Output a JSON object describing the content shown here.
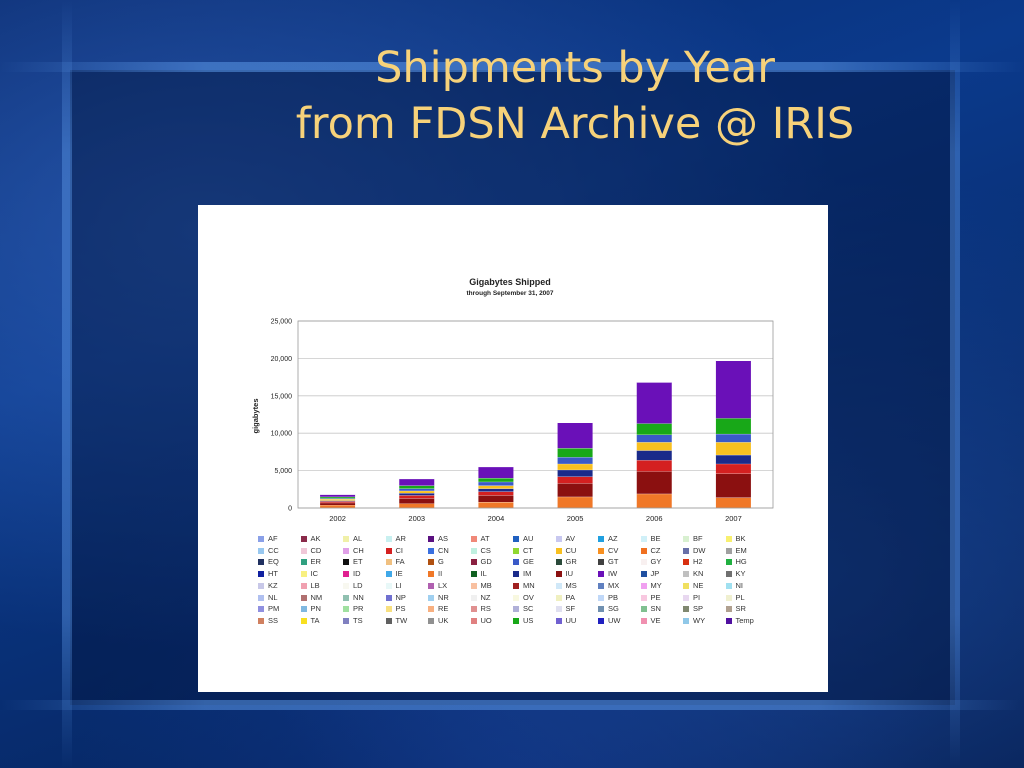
{
  "slide": {
    "title_line1": "Shipments by Year",
    "title_line2": "from FDSN Archive @ IRIS"
  },
  "chart_data": {
    "type": "bar",
    "stacked": true,
    "title": "Gigabytes Shipped",
    "subtitle": "through September 31, 2007",
    "ylabel": "gigabytes",
    "xlabel": "",
    "ylim": [
      0,
      25000
    ],
    "yticks": [
      0,
      5000,
      10000,
      15000,
      20000,
      25000
    ],
    "ytick_labels": [
      "0",
      "5,000",
      "10,000",
      "15,000",
      "20,000",
      "25,000"
    ],
    "grid": true,
    "categories": [
      "2002",
      "2003",
      "2004",
      "2005",
      "2006",
      "2007"
    ],
    "totals": [
      1800,
      3900,
      5500,
      11400,
      16800,
      19700
    ],
    "series": [
      {
        "name": "II",
        "color": "#f07828",
        "values": [
          400,
          600,
          800,
          1500,
          1900,
          1400
        ]
      },
      {
        "name": "IU",
        "color": "#8b1010",
        "values": [
          300,
          700,
          900,
          1800,
          3000,
          3200
        ]
      },
      {
        "name": "CI",
        "color": "#d42020",
        "values": [
          200,
          400,
          500,
          900,
          1500,
          1300
        ]
      },
      {
        "name": "IM",
        "color": "#1a2a8a",
        "values": [
          100,
          300,
          400,
          900,
          1300,
          1200
        ]
      },
      {
        "name": "CU",
        "color": "#f8c020",
        "values": [
          200,
          300,
          400,
          800,
          1100,
          1700
        ]
      },
      {
        "name": "GE",
        "color": "#3a5ac8",
        "values": [
          100,
          300,
          500,
          900,
          1000,
          1100
        ]
      },
      {
        "name": "US",
        "color": "#18a818",
        "values": [
          200,
          400,
          500,
          1200,
          1500,
          2100
        ]
      },
      {
        "name": "IW",
        "color": "#6a10b8",
        "values": [
          300,
          900,
          1500,
          3400,
          5500,
          7700
        ]
      }
    ],
    "legend_position": "bottom",
    "legend": [
      {
        "name": "AF",
        "color": "#8aa0e8"
      },
      {
        "name": "AK",
        "color": "#8a2a4a"
      },
      {
        "name": "AL",
        "color": "#f0f0a8"
      },
      {
        "name": "AR",
        "color": "#c8f0f0"
      },
      {
        "name": "AS",
        "color": "#5a1080"
      },
      {
        "name": "AT",
        "color": "#f08878"
      },
      {
        "name": "AU",
        "color": "#2060c0"
      },
      {
        "name": "AV",
        "color": "#c8c8f0"
      },
      {
        "name": "AZ",
        "color": "#20a0e0"
      },
      {
        "name": "BE",
        "color": "#d0f0f8"
      },
      {
        "name": "BF",
        "color": "#d8f0d0"
      },
      {
        "name": "BK",
        "color": "#f8f070"
      },
      {
        "name": "CC",
        "color": "#98c8f0"
      },
      {
        "name": "CD",
        "color": "#f0c8d8"
      },
      {
        "name": "CH",
        "color": "#e0a0e8"
      },
      {
        "name": "CI",
        "color": "#d42020"
      },
      {
        "name": "CN",
        "color": "#3a70e0"
      },
      {
        "name": "CS",
        "color": "#c0f0e0"
      },
      {
        "name": "CT",
        "color": "#90d830"
      },
      {
        "name": "CU",
        "color": "#f8c020"
      },
      {
        "name": "CV",
        "color": "#f89020"
      },
      {
        "name": "CZ",
        "color": "#f07020"
      },
      {
        "name": "DW",
        "color": "#6870a8"
      },
      {
        "name": "EM",
        "color": "#a0a0a0"
      },
      {
        "name": "EQ",
        "color": "#203060"
      },
      {
        "name": "ER",
        "color": "#30a080"
      },
      {
        "name": "ET",
        "color": "#101010"
      },
      {
        "name": "FA",
        "color": "#f0c080"
      },
      {
        "name": "G",
        "color": "#b05010"
      },
      {
        "name": "GD",
        "color": "#8a2040"
      },
      {
        "name": "GE",
        "color": "#3a5ac8"
      },
      {
        "name": "GR",
        "color": "#2a4a3a"
      },
      {
        "name": "GT",
        "color": "#404040"
      },
      {
        "name": "GY",
        "color": "#f8f0f0"
      },
      {
        "name": "H2",
        "color": "#d83010"
      },
      {
        "name": "HG",
        "color": "#20b040"
      },
      {
        "name": "HT",
        "color": "#1020a0"
      },
      {
        "name": "IC",
        "color": "#f8f080"
      },
      {
        "name": "ID",
        "color": "#e02090"
      },
      {
        "name": "IE",
        "color": "#40a8e8"
      },
      {
        "name": "II",
        "color": "#f07828"
      },
      {
        "name": "IL",
        "color": "#106020"
      },
      {
        "name": "IM",
        "color": "#1a2a8a"
      },
      {
        "name": "IU",
        "color": "#8b1010"
      },
      {
        "name": "IW",
        "color": "#6a10b8"
      },
      {
        "name": "JP",
        "color": "#2050a0"
      },
      {
        "name": "KN",
        "color": "#c0c0c0"
      },
      {
        "name": "KY",
        "color": "#707070"
      },
      {
        "name": "KZ",
        "color": "#c8c8e8"
      },
      {
        "name": "LB",
        "color": "#f0a0b0"
      },
      {
        "name": "LD",
        "color": "#f8f8f0"
      },
      {
        "name": "LI",
        "color": "#e8f8f8"
      },
      {
        "name": "LX",
        "color": "#b060b0"
      },
      {
        "name": "MB",
        "color": "#f8c0a0"
      },
      {
        "name": "MN",
        "color": "#a02020"
      },
      {
        "name": "MS",
        "color": "#d0e8f8"
      },
      {
        "name": "MX",
        "color": "#6080c0"
      },
      {
        "name": "MY",
        "color": "#f0a0f0"
      },
      {
        "name": "NE",
        "color": "#f0e060"
      },
      {
        "name": "NI",
        "color": "#a0e0f0"
      },
      {
        "name": "NL",
        "color": "#b0c0f0"
      },
      {
        "name": "NM",
        "color": "#b07070"
      },
      {
        "name": "NN",
        "color": "#90c0b0"
      },
      {
        "name": "NP",
        "color": "#7070d0"
      },
      {
        "name": "NR",
        "color": "#a0d0f0"
      },
      {
        "name": "NZ",
        "color": "#f0f0f0"
      },
      {
        "name": "OV",
        "color": "#f8f8e0"
      },
      {
        "name": "PA",
        "color": "#f0f0c0"
      },
      {
        "name": "PB",
        "color": "#c0d8f8"
      },
      {
        "name": "PE",
        "color": "#f8c8e0"
      },
      {
        "name": "PI",
        "color": "#e8d8f0"
      },
      {
        "name": "PL",
        "color": "#f0f0d0"
      },
      {
        "name": "PM",
        "color": "#9090e0"
      },
      {
        "name": "PN",
        "color": "#80b8e0"
      },
      {
        "name": "PR",
        "color": "#a0e0a0"
      },
      {
        "name": "PS",
        "color": "#f8e080"
      },
      {
        "name": "RE",
        "color": "#f8b080"
      },
      {
        "name": "RS",
        "color": "#e09090"
      },
      {
        "name": "SC",
        "color": "#b0b0d8"
      },
      {
        "name": "SF",
        "color": "#e0e0f0"
      },
      {
        "name": "SG",
        "color": "#7090b0"
      },
      {
        "name": "SN",
        "color": "#80c090"
      },
      {
        "name": "SP",
        "color": "#808870"
      },
      {
        "name": "SR",
        "color": "#b0a090"
      },
      {
        "name": "SS",
        "color": "#d08060"
      },
      {
        "name": "TA",
        "color": "#f8e020"
      },
      {
        "name": "TS",
        "color": "#8080c0"
      },
      {
        "name": "TW",
        "color": "#606060"
      },
      {
        "name": "UK",
        "color": "#909090"
      },
      {
        "name": "UO",
        "color": "#e08080"
      },
      {
        "name": "US",
        "color": "#18a818"
      },
      {
        "name": "UU",
        "color": "#7060d0"
      },
      {
        "name": "UW",
        "color": "#2020c0"
      },
      {
        "name": "VE",
        "color": "#f090b0"
      },
      {
        "name": "WY",
        "color": "#90c8e8"
      },
      {
        "name": "Temp",
        "color": "#5010a0"
      }
    ]
  }
}
